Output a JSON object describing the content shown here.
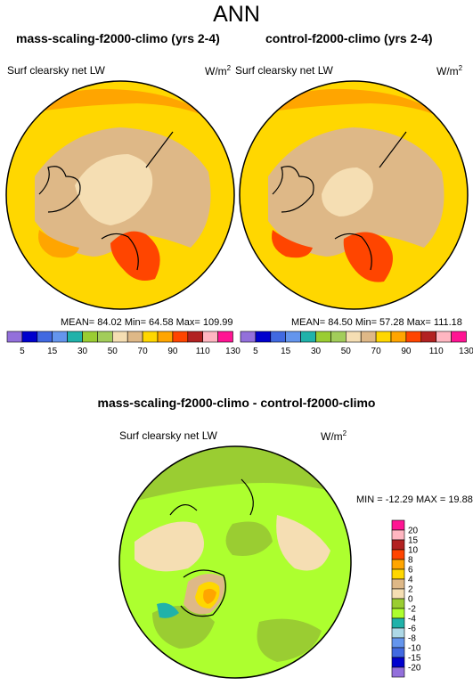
{
  "title": "ANN",
  "colors": {
    "abs_scale": [
      "#9370DB",
      "#0000CD",
      "#4169E1",
      "#6495ED",
      "#20B2AA",
      "#9ACD32",
      "#A2CD5A",
      "#F5DEB3",
      "#DEB887",
      "#FFD700",
      "#FFA500",
      "#FF4500",
      "#B22222",
      "#FFB6C1",
      "#FF1493"
    ],
    "diff_scale": [
      "#9370DB",
      "#0000CD",
      "#4169E1",
      "#6495ED",
      "#ADD8E6",
      "#20B2AA",
      "#ADFF2F",
      "#9ACD32",
      "#F5DEB3",
      "#DEB887",
      "#FFD700",
      "#FFA500",
      "#FF4500",
      "#B22222",
      "#FFB6C1",
      "#FF1493"
    ]
  },
  "panels": {
    "left": {
      "title": "mass-scaling-f2000-climo (yrs 2-4)",
      "variable": "Surf clearsky net LW",
      "units_base": "W/m",
      "units_sup": "2",
      "stats": "MEAN=  84.02  Min=  64.58  Max= 109.99"
    },
    "right": {
      "title": "control-f2000-climo (yrs 2-4)",
      "variable": "Surf clearsky net LW",
      "units_base": "W/m",
      "units_sup": "2",
      "stats": "MEAN=  84.50  Min=  57.28  Max= 111.18"
    },
    "diff": {
      "title": "mass-scaling-f2000-climo - control-f2000-climo",
      "variable": "Surf clearsky net LW",
      "units_base": "W/m",
      "units_sup": "2",
      "minmax": "MIN = -12.29 MAX =  19.88"
    }
  },
  "colorbar_abs": {
    "labels": [
      "5",
      "15",
      "30",
      "50",
      "70",
      "90",
      "110",
      "130"
    ]
  },
  "colorbar_diff": {
    "labels": [
      "20",
      "15",
      "10",
      "8",
      "6",
      "4",
      "2",
      "0",
      "-2",
      "-4",
      "-6",
      "-8",
      "-10",
      "-15",
      "-20"
    ]
  }
}
